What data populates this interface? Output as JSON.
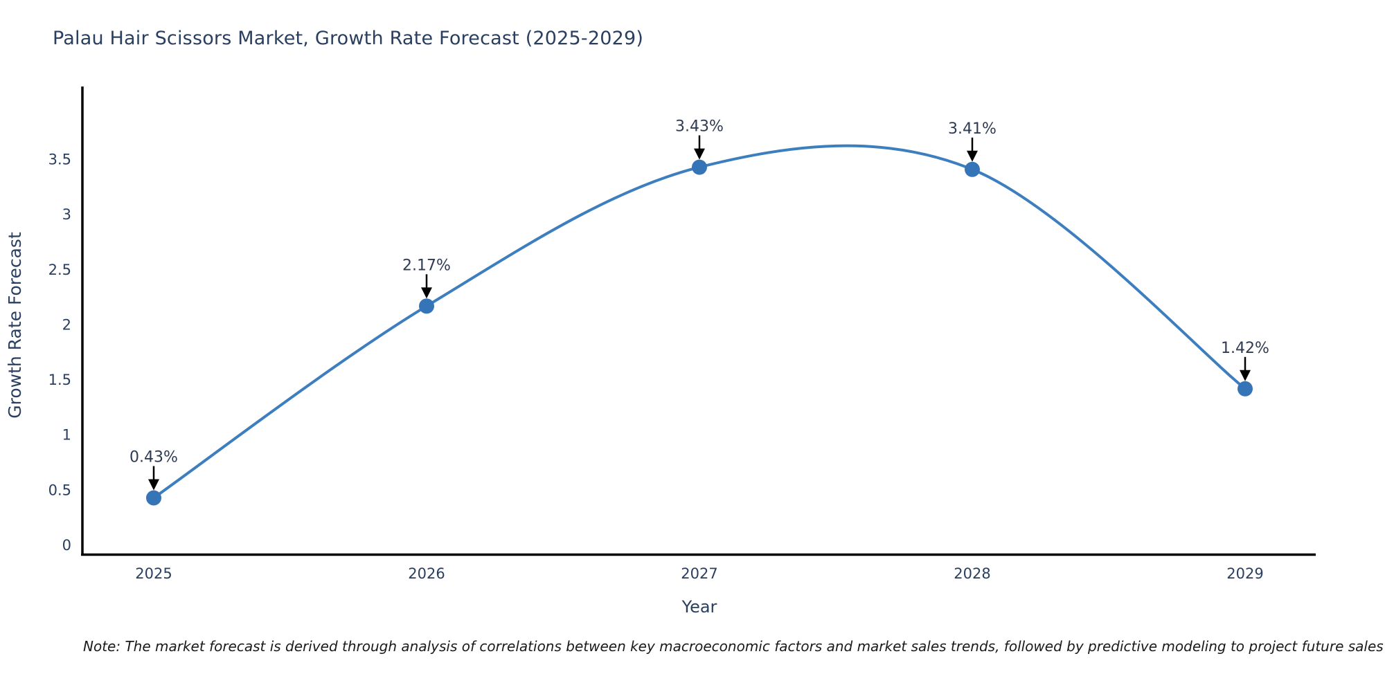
{
  "title": "Palau Hair Scissors Market, Growth Rate Forecast (2025-2029)",
  "note": "Note: The market forecast is derived through analysis of correlations between key macroeconomic factors and market sales trends, followed by predictive modeling to project future sales",
  "chart_data": {
    "type": "line",
    "line_shape": "spline",
    "x": [
      "2025",
      "2026",
      "2027",
      "2028",
      "2029"
    ],
    "values": [
      0.43,
      2.17,
      3.43,
      3.41,
      1.42
    ],
    "point_labels": [
      "0.43%",
      "2.17%",
      "3.43%",
      "3.41%",
      "1.42%"
    ],
    "xlabel": "Year",
    "ylabel": "Growth Rate Forecast",
    "yticks": [
      0,
      0.5,
      1,
      1.5,
      2,
      2.5,
      3,
      3.5
    ],
    "ylim": [
      0,
      4.15
    ],
    "grid": false,
    "legend": "none",
    "colors": {
      "line": "#3d7ebf",
      "marker": "#3674b8",
      "axis": "#000000",
      "text": "#2a3f5f",
      "annotation_text": "#2f3b52",
      "annotation_arrow": "#000000",
      "note_text": "#1a1a1a"
    }
  }
}
